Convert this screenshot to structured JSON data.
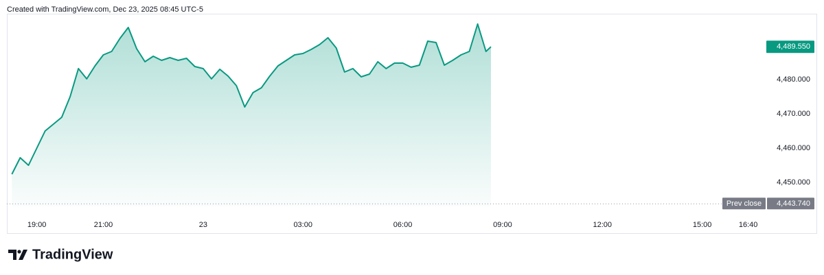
{
  "header": "Created with TradingView.com, Dec 23, 2025 08:45 UTC-5",
  "chart_data": {
    "type": "area",
    "color": "#089981",
    "x": [
      18.25,
      18.5,
      18.75,
      19,
      19.25,
      19.5,
      19.75,
      20,
      20.25,
      20.5,
      20.75,
      21,
      21.25,
      21.5,
      21.75,
      22,
      22.25,
      22.5,
      22.75,
      23,
      23.25,
      23.5,
      23.75,
      24,
      24.25,
      24.5,
      24.75,
      25,
      25.25,
      25.5,
      25.75,
      26,
      26.25,
      26.5,
      26.75,
      27,
      27.25,
      27.5,
      27.75,
      28,
      28.25,
      28.5,
      28.75,
      29,
      29.25,
      29.5,
      29.75,
      30,
      30.25,
      30.5,
      30.75,
      31,
      31.25,
      31.5,
      31.75,
      32,
      32.25,
      32.5,
      32.65
    ],
    "values": [
      4452.4,
      4457.2,
      4455,
      4460,
      4465,
      4467,
      4469,
      4475,
      4483.2,
      4480.2,
      4484,
      4487.2,
      4488.2,
      4492,
      4495.2,
      4489,
      4485.2,
      4486.8,
      4485.6,
      4486.4,
      4485.6,
      4486.2,
      4483.8,
      4483.2,
      4480.2,
      4483,
      4481,
      4478.2,
      4472,
      4476.2,
      4477.6,
      4481,
      4484,
      4485.6,
      4487.2,
      4487.6,
      4488.8,
      4490.2,
      4492.2,
      4489.2,
      4482.2,
      4483.2,
      4480.8,
      4481.6,
      4485.2,
      4483.2,
      4484.8,
      4484.8,
      4483.6,
      4484.2,
      4491.2,
      4490.8,
      4484.2,
      4485.6,
      4487.2,
      4488.2,
      4496.2,
      4488.2,
      4489.55
    ],
    "xlim": [
      18.1,
      40.7
    ],
    "ylim": [
      4443,
      4500
    ],
    "xticks": [
      {
        "value": 19,
        "label": "19:00"
      },
      {
        "value": 21,
        "label": "21:00"
      },
      {
        "value": 24,
        "label": "23"
      },
      {
        "value": 27,
        "label": "03:00"
      },
      {
        "value": 30,
        "label": "06:00"
      },
      {
        "value": 33,
        "label": "09:00"
      },
      {
        "value": 36,
        "label": "12:00"
      },
      {
        "value": 39,
        "label": "15:00"
      },
      {
        "value": 40.667,
        "label": "16:40"
      }
    ],
    "yticks": [
      {
        "value": 4450,
        "label": "4,450.000"
      },
      {
        "value": 4460,
        "label": "4,460.000"
      },
      {
        "value": 4470,
        "label": "4,470.000"
      },
      {
        "value": 4480,
        "label": "4,480.000"
      }
    ],
    "last_price": {
      "value": 4489.55,
      "label": "4,489.550"
    },
    "prev_close": {
      "name": "Prev close",
      "value": 4443.74,
      "label": "4,443.740"
    }
  },
  "footer": {
    "brand": "TradingView"
  }
}
